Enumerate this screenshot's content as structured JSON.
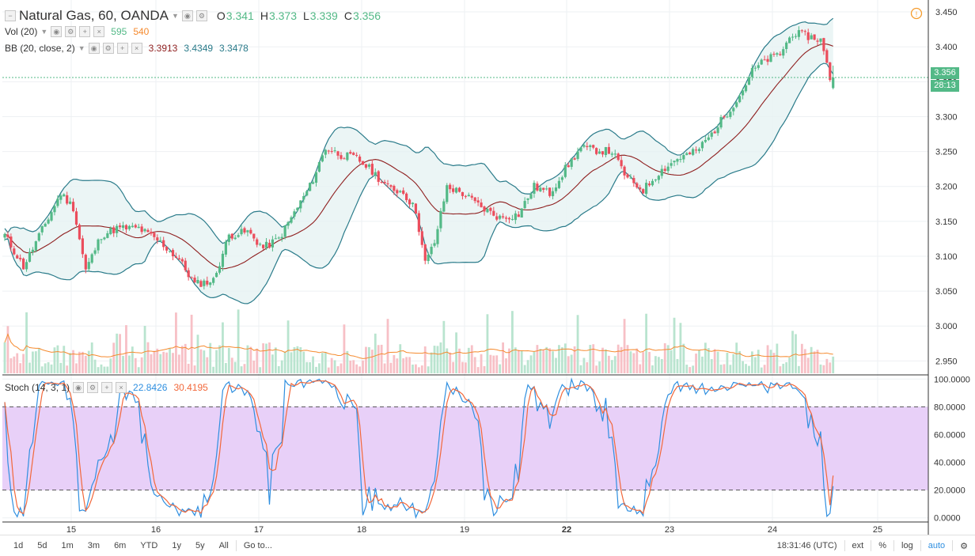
{
  "header": {
    "symbol": "Natural Gas, 60, OANDA",
    "ohlc": [
      {
        "k": "O",
        "v": "3.341"
      },
      {
        "k": "H",
        "v": "3.373"
      },
      {
        "k": "L",
        "v": "3.339"
      },
      {
        "k": "C",
        "v": "3.356"
      }
    ]
  },
  "vol_legend": {
    "label": "Vol (20)",
    "v1": "595",
    "v2": "540"
  },
  "bb_legend": {
    "label": "BB (20, close, 2)",
    "v1": "3.3913",
    "v2": "3.4349",
    "v3": "3.3478"
  },
  "stoch_legend": {
    "label": "Stoch (14, 3, 1)",
    "v1": "22.8426",
    "v2": "30.4195"
  },
  "price_tag": {
    "value": "3.356",
    "countdown": "28:13"
  },
  "bottom": {
    "timeframes": [
      "1d",
      "5d",
      "1m",
      "3m",
      "6m",
      "YTD",
      "1y",
      "5y",
      "All"
    ],
    "goto": "Go to...",
    "clock": "18:31:46 (UTC)",
    "ext": "ext",
    "pct": "%",
    "log": "log",
    "auto": "auto"
  },
  "colors": {
    "up": "#53b987",
    "down": "#eb4d5c",
    "band": "#2a7b8a",
    "basis": "#8f1f1f",
    "volMA": "#f58a2e",
    "stochK": "#2f8fe0",
    "stochD": "#f2683b",
    "stochBg": "#e8d0f8",
    "alert": "#f59c2d"
  },
  "chart_data": {
    "type": "candlestick",
    "x_labels": [
      "15",
      "16",
      "17",
      "18",
      "19",
      "22",
      "23",
      "24",
      "25"
    ],
    "price_ticks": [
      "3.450",
      "3.400",
      "3.350",
      "3.300",
      "3.250",
      "3.200",
      "3.150",
      "3.100",
      "3.050",
      "3.000",
      "2.950"
    ],
    "price_range": [
      2.93,
      3.458
    ],
    "stoch_ticks": [
      "100.0000",
      "80.0000",
      "60.0000",
      "40.0000",
      "20.0000",
      "0.0000"
    ],
    "stoch_range": [
      -3,
      103
    ],
    "last_price": 3.356,
    "indicators": {
      "bb": {
        "basis": 3.3913,
        "upper": 3.4349,
        "lower": 3.3478
      },
      "volume": {
        "v1": 595,
        "ma": 540
      },
      "stoch": {
        "k": 22.8426,
        "d": 30.4195
      }
    },
    "anchors": [
      [
        0,
        3.13
      ],
      [
        6,
        3.085
      ],
      [
        10,
        3.12
      ],
      [
        14,
        3.155
      ],
      [
        18,
        3.19
      ],
      [
        22,
        3.17
      ],
      [
        26,
        3.08
      ],
      [
        31,
        3.13
      ],
      [
        36,
        3.14
      ],
      [
        43,
        3.14
      ],
      [
        50,
        3.12
      ],
      [
        56,
        3.095
      ],
      [
        61,
        3.06
      ],
      [
        67,
        3.065
      ],
      [
        72,
        3.13
      ],
      [
        78,
        3.135
      ],
      [
        83,
        3.112
      ],
      [
        88,
        3.125
      ],
      [
        94,
        3.17
      ],
      [
        98,
        3.2
      ],
      [
        103,
        3.255
      ],
      [
        108,
        3.245
      ],
      [
        113,
        3.24
      ],
      [
        118,
        3.222
      ],
      [
        123,
        3.198
      ],
      [
        128,
        3.192
      ],
      [
        132,
        3.165
      ],
      [
        135,
        3.09
      ],
      [
        138,
        3.12
      ],
      [
        142,
        3.2
      ],
      [
        147,
        3.19
      ],
      [
        153,
        3.17
      ],
      [
        159,
        3.155
      ],
      [
        165,
        3.16
      ],
      [
        170,
        3.2
      ],
      [
        175,
        3.19
      ],
      [
        180,
        3.225
      ],
      [
        185,
        3.255
      ],
      [
        190,
        3.252
      ],
      [
        195,
        3.25
      ],
      [
        200,
        3.21
      ],
      [
        205,
        3.195
      ],
      [
        210,
        3.22
      ],
      [
        216,
        3.24
      ],
      [
        222,
        3.25
      ],
      [
        227,
        3.275
      ],
      [
        231,
        3.3
      ],
      [
        236,
        3.33
      ],
      [
        240,
        3.365
      ],
      [
        244,
        3.38
      ],
      [
        249,
        3.39
      ],
      [
        253,
        3.42
      ],
      [
        258,
        3.415
      ],
      [
        262,
        3.41
      ],
      [
        265,
        3.356
      ]
    ]
  }
}
